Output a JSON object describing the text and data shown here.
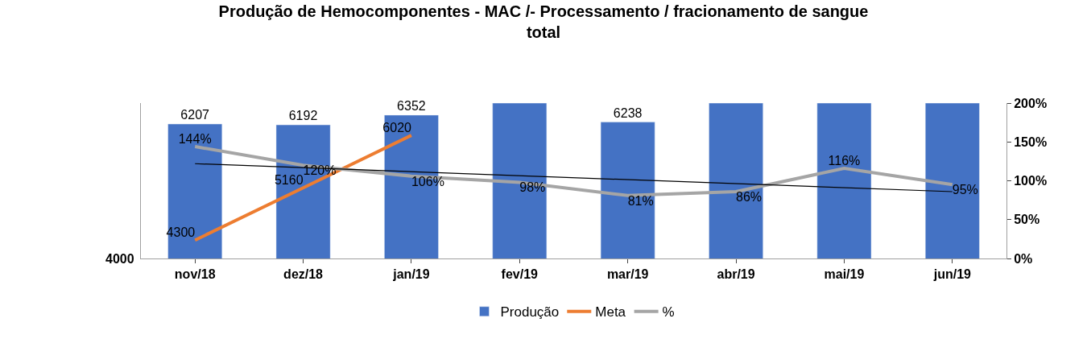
{
  "chart_data": {
    "type": "bar",
    "title": "Produção de Hemocomponentes - MAC /- Processamento / fracionamento de sangue\ntotal",
    "categories": [
      "nov/18",
      "dez/18",
      "jan/19",
      "fev/19",
      "mar/19",
      "abr/19",
      "mai/19",
      "jun/19"
    ],
    "series": [
      {
        "name": "Produção",
        "color": "#4472c4",
        "values": [
          6207,
          6192,
          6352,
          6550,
          6238,
          6550,
          6550,
          6550
        ],
        "value_labels": [
          "6207",
          "6192",
          "6352",
          null,
          "6238",
          null,
          null,
          null
        ]
      },
      {
        "name": "Meta",
        "type": "line",
        "color": "#ed7d31",
        "values": [
          4300,
          5160,
          6020,
          null,
          null,
          null,
          null,
          null
        ],
        "value_labels": [
          "4300",
          "5160",
          "6020",
          null,
          null,
          null,
          null,
          null
        ]
      },
      {
        "name": "%",
        "type": "line",
        "axis": "y2",
        "color": "#a5a5a5",
        "values": [
          144,
          120,
          106,
          98,
          81,
          86,
          116,
          95
        ],
        "value_labels": [
          "144%",
          "120%",
          "106%",
          "98%",
          "81%",
          "86%",
          "116%",
          "95%"
        ]
      },
      {
        "type": "line",
        "axis": "y2",
        "color": "#000000",
        "x": [
          "nov/18",
          "jun/19"
        ],
        "values": [
          122,
          86
        ]
      }
    ],
    "ylim": [
      4000,
      6550
    ],
    "annotations": [
      "4000"
    ],
    "y2lim": [
      0,
      200
    ],
    "y2ticks": [
      {
        "value": 0,
        "label": "0%"
      },
      {
        "value": 50,
        "label": "50%"
      },
      {
        "value": 100,
        "label": "100%"
      },
      {
        "value": 150,
        "label": "150%"
      },
      {
        "value": 200,
        "label": "200%"
      }
    ],
    "legend": "bottom"
  }
}
